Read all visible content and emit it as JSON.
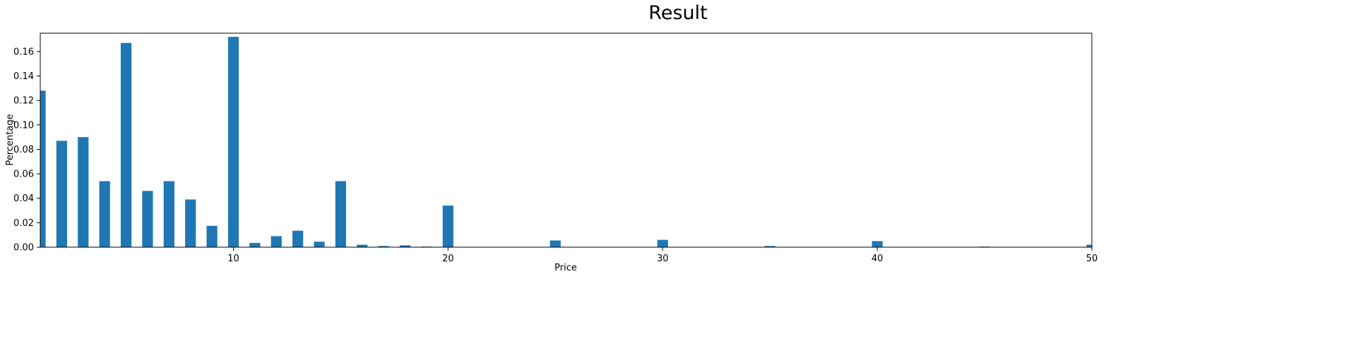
{
  "chart_data": {
    "type": "bar",
    "title": "Result",
    "xlabel": "Price",
    "ylabel": "Percentage",
    "xlim": [
      1,
      50
    ],
    "ylim": [
      0,
      0.175
    ],
    "x_ticks": [
      10,
      20,
      30,
      40,
      50
    ],
    "y_ticks": [
      0.0,
      0.02,
      0.04,
      0.06,
      0.08,
      0.1,
      0.12,
      0.14,
      0.16
    ],
    "y_tick_labels": [
      "0.00",
      "0.02",
      "0.04",
      "0.06",
      "0.08",
      "0.10",
      "0.12",
      "0.14",
      "0.16"
    ],
    "bar_width": 0.5,
    "grid": false,
    "color": "#1f77b4",
    "x": [
      1,
      2,
      3,
      4,
      5,
      6,
      7,
      8,
      9,
      10,
      11,
      12,
      13,
      14,
      15,
      16,
      17,
      18,
      19,
      20,
      25,
      30,
      35,
      40,
      45,
      50
    ],
    "values": [
      0.128,
      0.087,
      0.09,
      0.054,
      0.167,
      0.046,
      0.054,
      0.039,
      0.0175,
      0.172,
      0.0035,
      0.009,
      0.0135,
      0.0045,
      0.054,
      0.002,
      0.001,
      0.0015,
      0.0005,
      0.034,
      0.0055,
      0.006,
      0.001,
      0.005,
      0.0005,
      0.002
    ]
  }
}
